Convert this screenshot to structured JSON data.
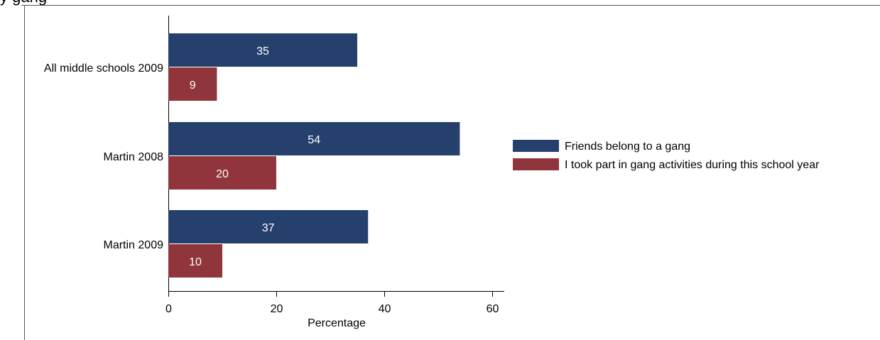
{
  "clipped_title": "y gang",
  "chart_data": {
    "type": "bar",
    "orientation": "horizontal",
    "categories": [
      "All middle schools 2009",
      "Martin 2008",
      "Martin 2009"
    ],
    "series": [
      {
        "name": "Friends belong to a gang",
        "values": [
          35,
          54,
          37
        ],
        "color": "#26406D"
      },
      {
        "name": "I took part in gang activities during this school year",
        "values": [
          9,
          20,
          10
        ],
        "color": "#90353B"
      }
    ],
    "xlabel": "Percentage",
    "xlim": [
      0,
      62
    ],
    "xticks": [
      0,
      20,
      40,
      60
    ],
    "data_labels": true,
    "legend_position": "right",
    "grid": false
  }
}
